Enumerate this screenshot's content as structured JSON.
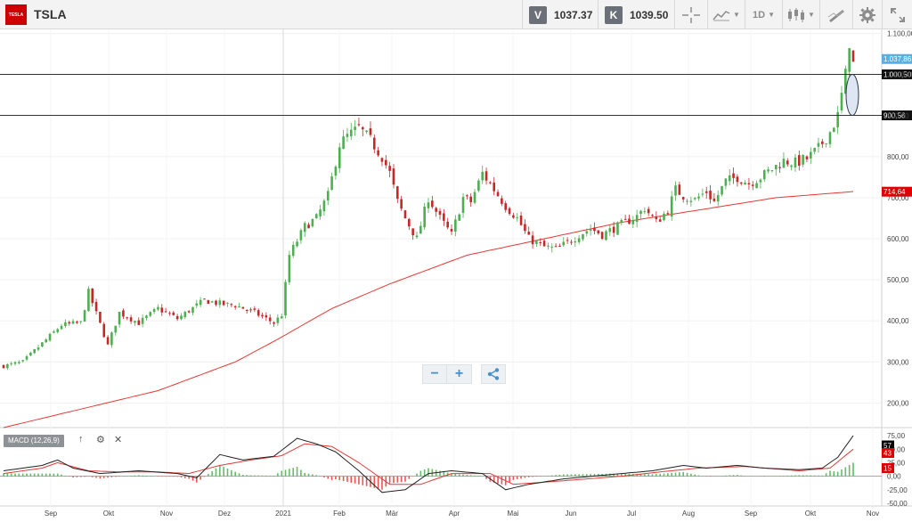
{
  "header": {
    "logo_text": "TESLA",
    "ticker": "TSLA",
    "sell_label": "V",
    "sell_price": "1037.37",
    "buy_label": "K",
    "buy_price": "1039.50",
    "timeframe": "1D",
    "icons": [
      "crosshair-icon",
      "line-chart-icon",
      "candles-icon",
      "draw-tools-icon",
      "gear-icon",
      "expand-icon"
    ]
  },
  "zoom": {
    "minus": "−",
    "plus": "+",
    "share_icon": "share-icon"
  },
  "macd": {
    "label": "MACD (12,26,9)",
    "controls": [
      "↑",
      "⚙",
      "✕"
    ]
  },
  "chart_data": {
    "type": "candlestick",
    "price_axis": {
      "ylim": [
        140,
        1110
      ],
      "ticks": [
        {
          "v": 1100,
          "t": "1.100,00"
        },
        {
          "v": 1000,
          "t": "1.000,00"
        },
        {
          "v": 900,
          "t": "900,00"
        },
        {
          "v": 800,
          "t": "800,00"
        },
        {
          "v": 700,
          "t": "700,00"
        },
        {
          "v": 600,
          "t": "600,00"
        },
        {
          "v": 500,
          "t": "500,00"
        },
        {
          "v": 400,
          "t": "400,00"
        },
        {
          "v": 300,
          "t": "300,00"
        },
        {
          "v": 200,
          "t": "200,00"
        }
      ]
    },
    "time_axis": {
      "months": [
        "Sep",
        "Okt",
        "Nov",
        "Dez",
        "2021",
        "Feb",
        "Mär",
        "Apr",
        "Mai",
        "Jun",
        "Jul",
        "Aug",
        "Sep",
        "Okt",
        "Nov"
      ]
    },
    "horizontal_lines": [
      {
        "value": 1000.5,
        "label": "1.000,50"
      },
      {
        "value": 900.56,
        "label": "900,56"
      }
    ],
    "price_flags": [
      {
        "value": 1037.86,
        "label": "1.037,86",
        "color": "#5aaee0"
      },
      {
        "value": 714.64,
        "label": "714,64",
        "color": "#e00000"
      }
    ],
    "close_path": [
      [
        0,
        290
      ],
      [
        5,
        300
      ],
      [
        10,
        345
      ],
      [
        15,
        390
      ],
      [
        20,
        395
      ],
      [
        22,
        470
      ],
      [
        27,
        340
      ],
      [
        30,
        420
      ],
      [
        35,
        395
      ],
      [
        40,
        430
      ],
      [
        45,
        405
      ],
      [
        48,
        425
      ],
      [
        52,
        450
      ],
      [
        57,
        440
      ],
      [
        60,
        438
      ],
      [
        65,
        420
      ],
      [
        70,
        395
      ],
      [
        72,
        415
      ],
      [
        74,
        560
      ],
      [
        78,
        630
      ],
      [
        81,
        650
      ],
      [
        84,
        705
      ],
      [
        87,
        830
      ],
      [
        89,
        850
      ],
      [
        92,
        870
      ],
      [
        95,
        840
      ],
      [
        98,
        800
      ],
      [
        100,
        760
      ],
      [
        102,
        690
      ],
      [
        104,
        650
      ],
      [
        107,
        600
      ],
      [
        110,
        700
      ],
      [
        113,
        650
      ],
      [
        116,
        610
      ],
      [
        119,
        700
      ],
      [
        121,
        690
      ],
      [
        124,
        760
      ],
      [
        127,
        720
      ],
      [
        130,
        680
      ],
      [
        133,
        650
      ],
      [
        136,
        600
      ],
      [
        140,
        580
      ],
      [
        143,
        575
      ],
      [
        146,
        590
      ],
      [
        149,
        610
      ],
      [
        152,
        625
      ],
      [
        155,
        610
      ],
      [
        158,
        625
      ],
      [
        161,
        640
      ],
      [
        164,
        655
      ],
      [
        166,
        675
      ],
      [
        169,
        640
      ],
      [
        172,
        670
      ],
      [
        174,
        720
      ],
      [
        176,
        705
      ],
      [
        179,
        695
      ],
      [
        182,
        715
      ],
      [
        184,
        690
      ],
      [
        187,
        740
      ],
      [
        190,
        750
      ],
      [
        193,
        735
      ],
      [
        196,
        750
      ],
      [
        199,
        770
      ],
      [
        202,
        790
      ],
      [
        205,
        785
      ],
      [
        208,
        795
      ],
      [
        211,
        820
      ],
      [
        214,
        860
      ],
      [
        216,
        900
      ],
      [
        218,
        1000
      ],
      [
        219,
        1080
      ],
      [
        220,
        1025
      ]
    ],
    "ma_path": [
      [
        0,
        140
      ],
      [
        20,
        185
      ],
      [
        40,
        230
      ],
      [
        60,
        300
      ],
      [
        70,
        350
      ],
      [
        85,
        430
      ],
      [
        100,
        490
      ],
      [
        120,
        560
      ],
      [
        140,
        600
      ],
      [
        160,
        640
      ],
      [
        180,
        670
      ],
      [
        200,
        700
      ],
      [
        220,
        715
      ]
    ],
    "macd_panel": {
      "ylim": [
        -60,
        90
      ],
      "ticks": [
        {
          "v": 75,
          "t": "75,00"
        },
        {
          "v": 50,
          "t": "50,00"
        },
        {
          "v": 25,
          "t": "25,00"
        },
        {
          "v": 0,
          "t": "0,00"
        },
        {
          "v": -25,
          "t": "-25,00"
        },
        {
          "v": -50,
          "t": "-50,00"
        }
      ],
      "flags": [
        {
          "value": 57,
          "label": "57",
          "color": "#000000"
        },
        {
          "value": 43,
          "label": "43",
          "color": "#e00000"
        },
        {
          "value": 15,
          "label": "15",
          "color": "#e00000"
        }
      ],
      "macd_line": [
        [
          0,
          10
        ],
        [
          10,
          20
        ],
        [
          14,
          30
        ],
        [
          18,
          15
        ],
        [
          25,
          5
        ],
        [
          35,
          10
        ],
        [
          45,
          5
        ],
        [
          50,
          -3
        ],
        [
          56,
          40
        ],
        [
          62,
          30
        ],
        [
          70,
          37
        ],
        [
          76,
          70
        ],
        [
          81,
          60
        ],
        [
          86,
          45
        ],
        [
          92,
          10
        ],
        [
          98,
          -30
        ],
        [
          104,
          -25
        ],
        [
          110,
          5
        ],
        [
          116,
          10
        ],
        [
          124,
          5
        ],
        [
          130,
          -25
        ],
        [
          136,
          -15
        ],
        [
          145,
          -5
        ],
        [
          160,
          5
        ],
        [
          168,
          10
        ],
        [
          176,
          20
        ],
        [
          182,
          15
        ],
        [
          190,
          20
        ],
        [
          197,
          15
        ],
        [
          206,
          12
        ],
        [
          212,
          15
        ],
        [
          216,
          35
        ],
        [
          220,
          75
        ]
      ],
      "signal_line": [
        [
          0,
          5
        ],
        [
          10,
          15
        ],
        [
          14,
          25
        ],
        [
          22,
          10
        ],
        [
          30,
          8
        ],
        [
          40,
          8
        ],
        [
          48,
          5
        ],
        [
          56,
          20
        ],
        [
          64,
          30
        ],
        [
          72,
          38
        ],
        [
          78,
          60
        ],
        [
          85,
          55
        ],
        [
          92,
          25
        ],
        [
          100,
          -15
        ],
        [
          108,
          -15
        ],
        [
          116,
          5
        ],
        [
          126,
          5
        ],
        [
          132,
          -15
        ],
        [
          142,
          -10
        ],
        [
          160,
          0
        ],
        [
          170,
          8
        ],
        [
          180,
          15
        ],
        [
          192,
          18
        ],
        [
          206,
          10
        ],
        [
          214,
          15
        ],
        [
          220,
          50
        ]
      ]
    }
  }
}
